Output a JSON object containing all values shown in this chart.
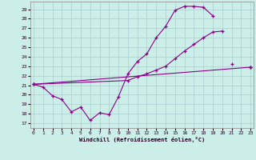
{
  "xlabel": "Windchill (Refroidissement éolien,°C)",
  "bg_color": "#cceee8",
  "grid_color": "#aacccc",
  "line_color": "#880088",
  "x_ticks": [
    0,
    1,
    2,
    3,
    4,
    5,
    6,
    7,
    8,
    9,
    10,
    11,
    12,
    13,
    14,
    15,
    16,
    17,
    18,
    19,
    20,
    21,
    22,
    23
  ],
  "y_ticks": [
    17,
    18,
    19,
    20,
    21,
    22,
    23,
    24,
    25,
    26,
    27,
    28,
    29
  ],
  "ylim": [
    16.5,
    29.8
  ],
  "xlim": [
    -0.3,
    23.3
  ],
  "series": [
    {
      "x": [
        0,
        1,
        2,
        3,
        4,
        5,
        6,
        7,
        8,
        9,
        10,
        11,
        12,
        13,
        14,
        15,
        16,
        17,
        18,
        19,
        20,
        21,
        22,
        23
      ],
      "y": [
        21.1,
        20.8,
        19.9,
        19.5,
        18.2,
        18.7,
        17.3,
        18.1,
        17.9,
        19.8,
        22.2,
        23.5,
        24.3,
        26.0,
        27.2,
        28.9,
        29.3,
        29.3,
        29.2,
        28.3,
        null,
        23.2,
        null,
        22.9
      ]
    },
    {
      "x": [
        0,
        10,
        11,
        12,
        13,
        14,
        15,
        16,
        17,
        18,
        19,
        20,
        21,
        22,
        23
      ],
      "y": [
        21.1,
        21.5,
        21.9,
        22.2,
        22.6,
        23.0,
        23.8,
        24.6,
        25.3,
        26.0,
        26.6,
        26.7,
        null,
        null,
        22.9
      ]
    },
    {
      "x": [
        0,
        23
      ],
      "y": [
        21.1,
        22.9
      ]
    }
  ]
}
